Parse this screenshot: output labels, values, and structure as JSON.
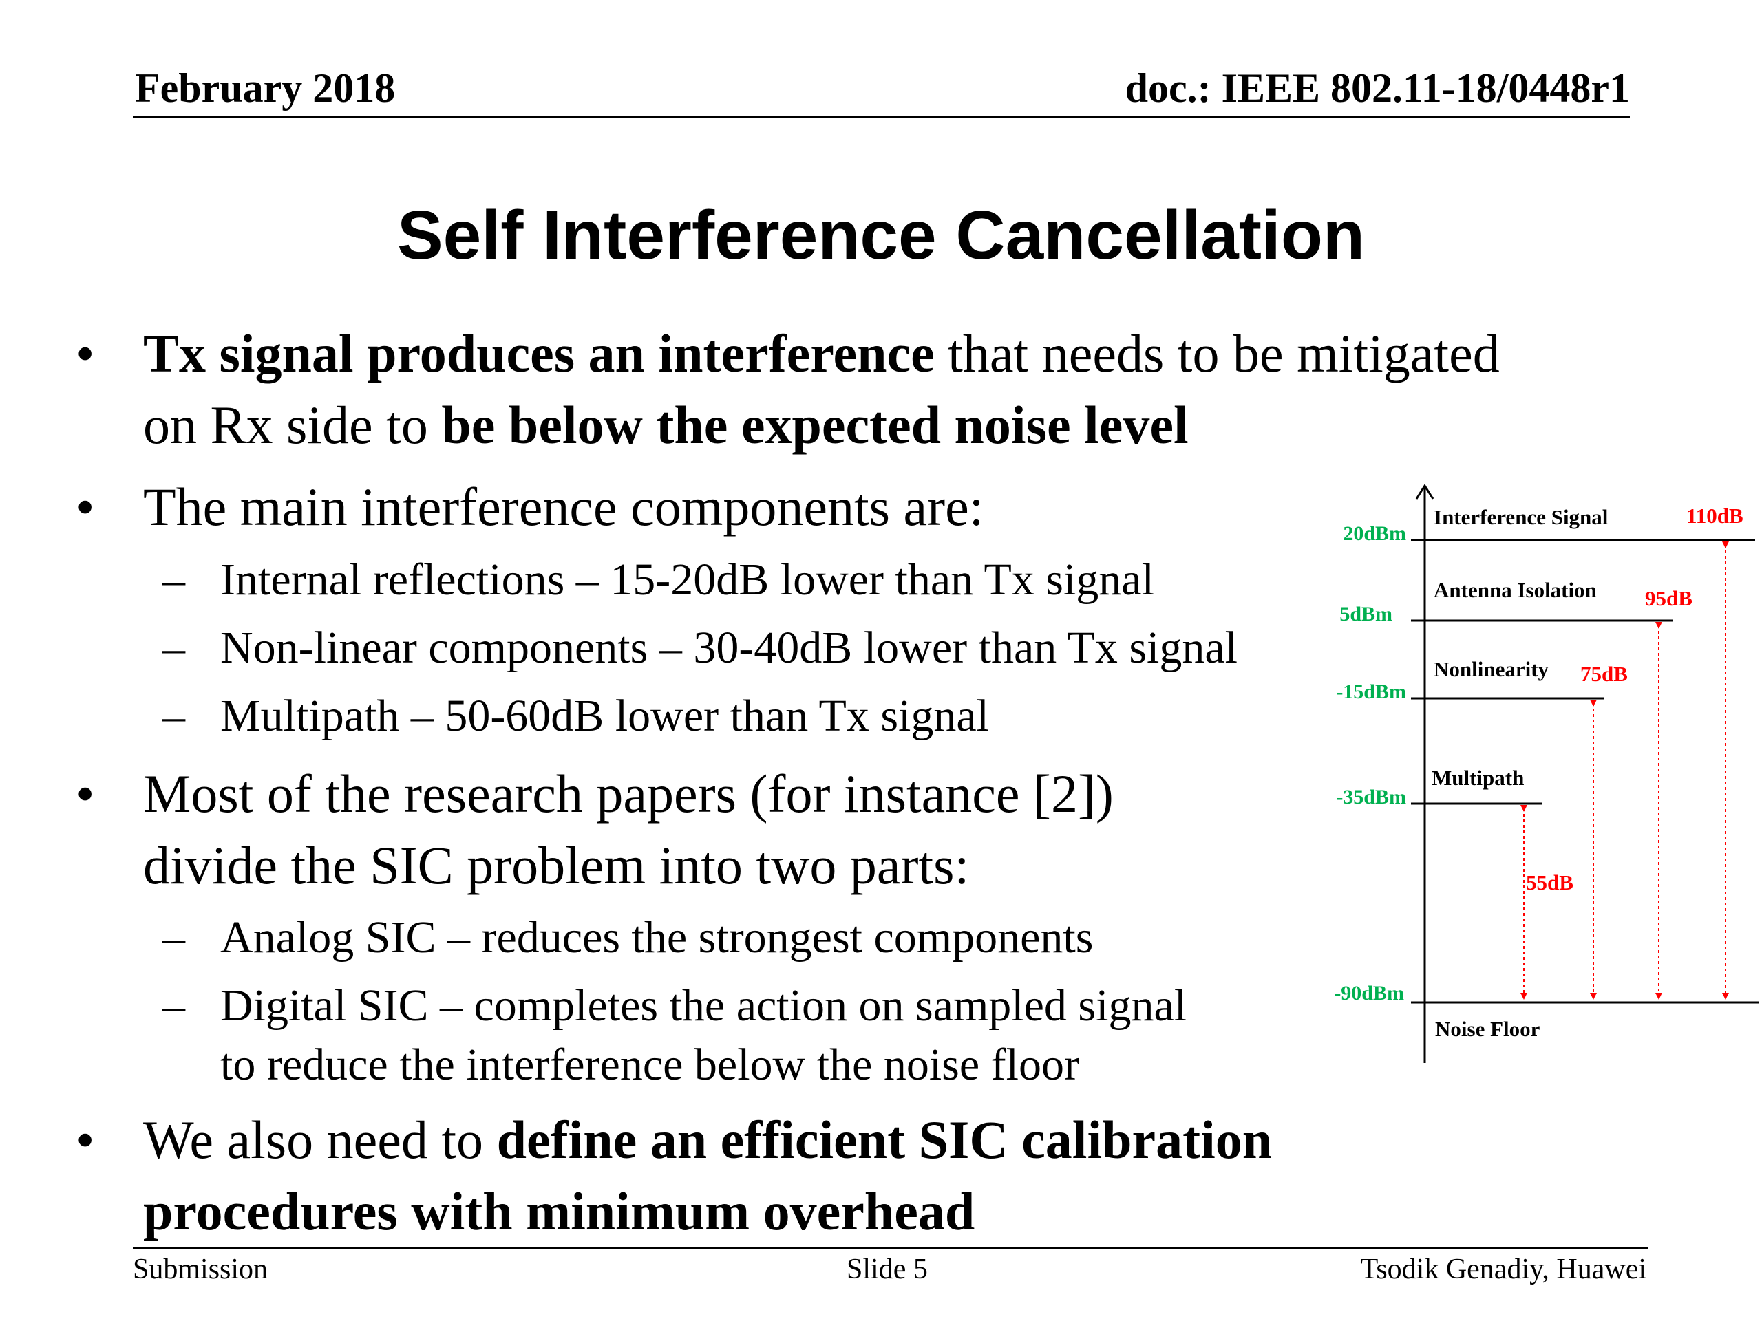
{
  "header": {
    "date": "February 2018",
    "doc": "doc.: IEEE 802.11-18/0448r1"
  },
  "title": "Self Interference Cancellation",
  "bullets": {
    "b1": {
      "p1": "Tx signal produces an interference",
      "p2": " that needs to be mitigated",
      "p3": "on Rx side to ",
      "p4": "be below the expected noise level"
    },
    "b2": {
      "text": "The main interference components are:",
      "subs": [
        "Internal reflections – 15-20dB lower than Tx signal",
        "Non-linear components – 30-40dB lower than Tx signal",
        "Multipath – 50-60dB lower than Tx signal"
      ]
    },
    "b3": {
      "line1": "Most of the research papers  (for instance [2])",
      "line2": "divide the SIC problem into two parts:",
      "subs": [
        "Analog SIC – reduces the strongest components",
        "Digital SIC – completes the action on sampled signal",
        "to reduce the interference below the noise floor"
      ]
    },
    "b4": {
      "p1": "We also need to ",
      "p2": "define an efficient SIC calibration",
      "p3": "procedures with minimum overhead"
    }
  },
  "diagram": {
    "levels": [
      {
        "dbm": "20dBm",
        "label": "Interference Signal"
      },
      {
        "dbm": "5dBm",
        "label": "Antenna Isolation"
      },
      {
        "dbm": "-15dBm",
        "label": "Nonlinearity"
      },
      {
        "dbm": "-35dBm",
        "label": "Multipath"
      },
      {
        "dbm": "-90dBm",
        "label": "Noise Floor"
      }
    ],
    "gaps": [
      "110dB",
      "95dB",
      "75dB",
      "55dB"
    ],
    "colors": {
      "dbm": "#00b050",
      "gap": "#ff0000",
      "axis": "#000000"
    }
  },
  "footer": {
    "left": "Submission",
    "center": "Slide 5",
    "right": "Tsodik Genadiy, Huawei"
  }
}
